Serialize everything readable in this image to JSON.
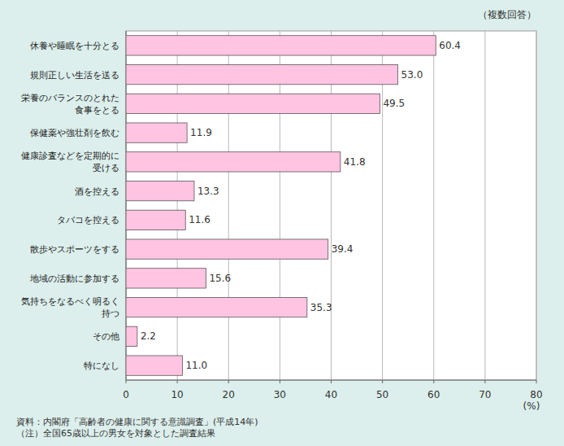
{
  "chart_data": {
    "type": "bar",
    "orientation": "horizontal",
    "subtitle": "（複数回答）",
    "categories": [
      "休養や睡眠を十分とる",
      "規則正しい生活を送る",
      "栄養のバランスのとれた\n食事をとる",
      "保健薬や強壮剤を飲む",
      "健康診査などを定期的に\n受ける",
      "酒を控える",
      "タバコを控える",
      "散歩やスポーツをする",
      "地域の活動に参加する",
      "気持ちをなるべく明るく\n持つ",
      "その他",
      "特になし"
    ],
    "values": [
      60.4,
      53.0,
      49.5,
      11.9,
      41.8,
      13.3,
      11.6,
      39.4,
      15.6,
      35.3,
      2.2,
      11.0
    ],
    "value_labels": [
      "60.4",
      "53.0",
      "49.5",
      "11.9",
      "41.8",
      "13.3",
      "11.6",
      "39.4",
      "15.6",
      "35.3",
      "2.2",
      "11.0"
    ],
    "color": "#ffc4e1",
    "ylim": [
      0,
      80
    ],
    "yticks": [
      0,
      10,
      20,
      30,
      40,
      50,
      60,
      70,
      80
    ],
    "ylabel": "(%)",
    "grid": true,
    "data_labels": true,
    "annotations": [
      "資料：内閣府「高齢者の健康に関する意識調査」(平成14年)",
      "（注）全国65歳以上の男女を対象とした調査結果"
    ]
  }
}
